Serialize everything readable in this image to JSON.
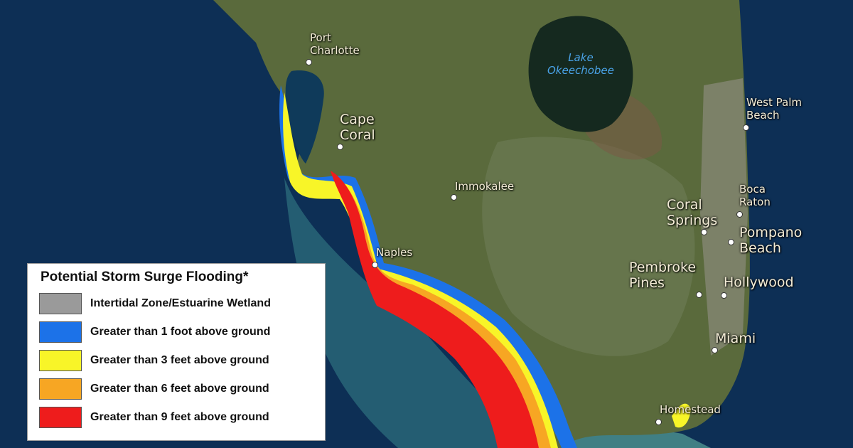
{
  "legend": {
    "title": "Potential Storm Surge Flooding*",
    "items": [
      {
        "label": "Intertidal Zone/Estuarine Wetland",
        "color": "#9a9a9a"
      },
      {
        "label": "Greater than 1 foot above ground",
        "color": "#1c72e8"
      },
      {
        "label": "Greater than 3 feet above ground",
        "color": "#f8f528"
      },
      {
        "label": "Greater than 6 feet above ground",
        "color": "#f7a623"
      },
      {
        "label": "Greater than 9 feet above ground",
        "color": "#ee1c1c"
      }
    ]
  },
  "cities": {
    "port_charlotte": [
      "Port",
      "Charlotte"
    ],
    "cape_coral": [
      "Cape",
      "Coral"
    ],
    "immokalee": "Immokalee",
    "naples": "Naples",
    "west_palm_beach": [
      "West Palm",
      "Beach"
    ],
    "boca_raton": [
      "Boca",
      "Raton"
    ],
    "coral_springs": [
      "Coral",
      "Springs"
    ],
    "pompano_beach": [
      "Pompano",
      "Beach"
    ],
    "pembroke_pines": [
      "Pembroke",
      "Pines"
    ],
    "hollywood": "Hollywood",
    "miami": "Miami",
    "homestead": "Homestead"
  },
  "lake": [
    "Lake",
    "Okeechobee"
  ],
  "colors": {
    "ocean": "#0d2f55",
    "land": "#5a6a3c",
    "lake": "#15291f"
  }
}
